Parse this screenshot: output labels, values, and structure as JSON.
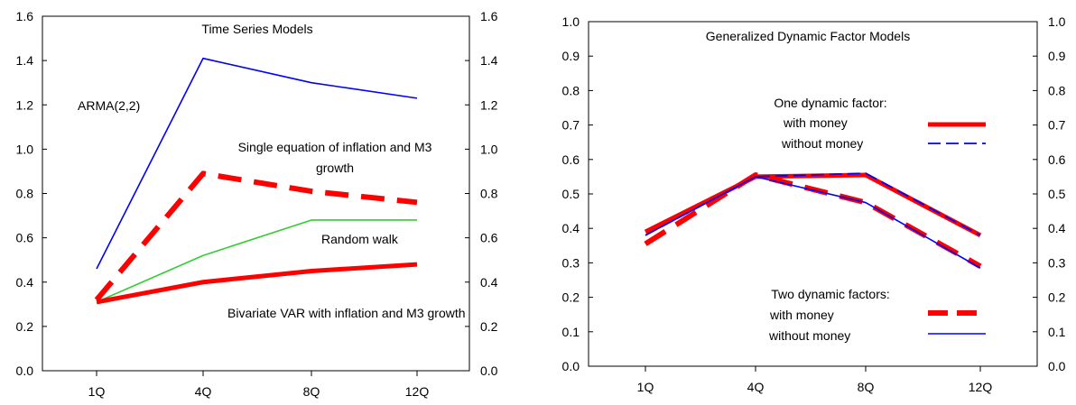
{
  "chart_data": [
    {
      "type": "line",
      "title": "Time Series Models",
      "categories": [
        "1Q",
        "4Q",
        "8Q",
        "12Q"
      ],
      "x_positions": [
        1,
        4,
        8,
        12
      ],
      "ylim": [
        0,
        1.6
      ],
      "yticks": [
        "0.0",
        "0.2",
        "0.4",
        "0.6",
        "0.8",
        "1.0",
        "1.2",
        "1.4",
        "1.6"
      ],
      "grid": false,
      "secondary_y_axis": true,
      "series": [
        {
          "label": "ARMA(2,2)",
          "values": [
            0.46,
            1.41,
            1.3,
            1.23
          ],
          "color": "#0000ff",
          "style": "solid-thin"
        },
        {
          "label": "Single equation of inflation and M3 growth",
          "values": [
            0.32,
            0.89,
            0.81,
            0.76
          ],
          "color": "#ff0000",
          "style": "dashed-thick"
        },
        {
          "label": "Random walk",
          "values": [
            0.31,
            0.52,
            0.68,
            0.68
          ],
          "color": "#33cc33",
          "style": "solid-thin"
        },
        {
          "label": "Bivariate VAR with inflation and M3 growth",
          "values": [
            0.31,
            0.4,
            0.45,
            0.48
          ],
          "color": "#ff0000",
          "style": "solid-thick"
        }
      ]
    },
    {
      "type": "line",
      "title": "Generalized Dynamic Factor Models",
      "categories": [
        "1Q",
        "4Q",
        "8Q",
        "12Q"
      ],
      "x_positions": [
        1,
        4,
        8,
        12
      ],
      "ylim": [
        0,
        1.0
      ],
      "yticks": [
        "0.0",
        "0.1",
        "0.2",
        "0.3",
        "0.4",
        "0.5",
        "0.6",
        "0.7",
        "0.8",
        "0.9",
        "1.0"
      ],
      "grid": false,
      "secondary_y_axis": true,
      "legend_groups": [
        {
          "title": "One dynamic factor:",
          "entries": [
            "with money",
            "without money"
          ]
        },
        {
          "title": "Two dynamic factors:",
          "entries": [
            "with money",
            "without money"
          ]
        }
      ],
      "series": [
        {
          "group": "One dynamic factor:",
          "name": "with money",
          "values": [
            0.39,
            0.55,
            0.555,
            0.38
          ],
          "color": "#ff0000",
          "style": "solid-thick"
        },
        {
          "group": "One dynamic factor:",
          "name": "without money",
          "values": [
            0.38,
            0.55,
            0.56,
            0.38
          ],
          "color": "#0000ff",
          "style": "dashed-thin"
        },
        {
          "group": "Two dynamic factors:",
          "name": "with money",
          "values": [
            0.355,
            0.555,
            0.475,
            0.29
          ],
          "color": "#ff0000",
          "style": "dashed-thick"
        },
        {
          "group": "Two dynamic factors:",
          "name": "without money",
          "values": [
            0.38,
            0.55,
            0.475,
            0.285
          ],
          "color": "#0000ff",
          "style": "solid-thin"
        }
      ]
    }
  ]
}
